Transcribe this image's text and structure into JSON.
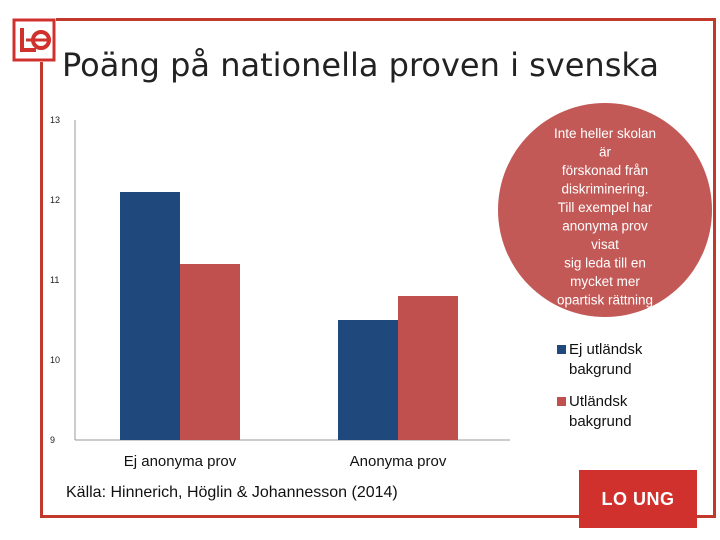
{
  "slide": {
    "title": "Poäng på nationella proven i svenska",
    "source": "Källa: Hinnerich, Höglin & Johannesson (2014)",
    "brand_badge": "LO UNG",
    "accent_color": "#d0312d",
    "logo_icon": "lo-logo-icon"
  },
  "chart_data": {
    "type": "bar",
    "categories": [
      "Ej anonyma prov",
      "Anonyma prov"
    ],
    "series": [
      {
        "name": "Ej utländsk bakgrund",
        "color": "#1f497d",
        "values": [
          12.1,
          10.5
        ]
      },
      {
        "name": "Utländsk bakgrund",
        "color": "#c0504d",
        "values": [
          11.2,
          10.8
        ]
      }
    ],
    "ylim": [
      9,
      13
    ],
    "yticks": [
      "9",
      "10",
      "11",
      "12",
      "13"
    ],
    "legend_position": "right",
    "xlabel": "",
    "ylabel": ""
  },
  "callout": {
    "color": "#c0504d",
    "lines": [
      "Inte heller skolan",
      "är",
      "förskonad från",
      "diskriminering.",
      "Till exempel har",
      "anonyma prov",
      "visat",
      "sig leda till en",
      "mycket mer",
      "opartisk rättning"
    ]
  }
}
